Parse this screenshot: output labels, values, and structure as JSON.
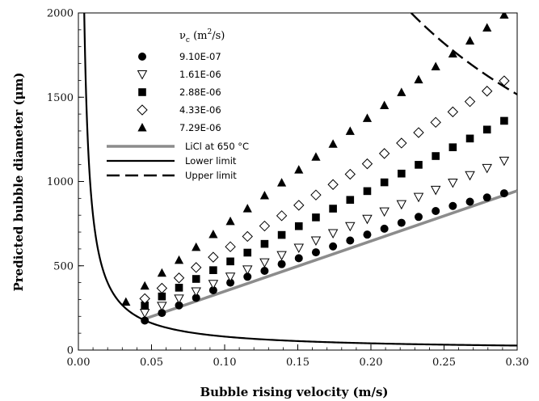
{
  "chart_data": {
    "type": "scatter",
    "xlabel": "Bubble rising velocity (m/s)",
    "ylabel": "Predicted bubble diameter (μm)",
    "xlim": [
      0.0,
      0.3
    ],
    "ylim": [
      0,
      2000
    ],
    "x_ticks": [
      "0.00",
      "0.05",
      "0.10",
      "0.15",
      "0.20",
      "0.25",
      "0.30"
    ],
    "y_ticks": [
      "0",
      "500",
      "1000",
      "1500",
      "2000"
    ],
    "grid": false,
    "legend_placement": "top-left",
    "legend_title_main": "ν",
    "legend_title_sub": "c",
    "legend_title_unit_open": " (m",
    "legend_title_unit_sup": "2",
    "legend_title_unit_close": "/s)",
    "x": [
      0.0454,
      0.0571,
      0.0688,
      0.0805,
      0.0922,
      0.1039,
      0.1156,
      0.1273,
      0.139,
      0.1507,
      0.1624,
      0.1741,
      0.1858,
      0.1975,
      0.2092,
      0.2209,
      0.2326,
      0.2443,
      0.256,
      0.2677,
      0.2794,
      0.2911
    ],
    "series": [
      {
        "name": "9.10E-07",
        "marker": "circle",
        "values": [
          175,
          220,
          265,
          310,
          355,
          400,
          435,
          470,
          510,
          545,
          580,
          615,
          650,
          685,
          720,
          755,
          790,
          825,
          855,
          880,
          905,
          930
        ]
      },
      {
        "name": "1.61E-06",
        "marker": "triangle-down-open",
        "values": [
          220,
          262,
          305,
          348,
          392,
          435,
          478,
          520,
          563,
          607,
          650,
          693,
          735,
          778,
          822,
          865,
          908,
          950,
          993,
          1037,
          1080,
          1123
        ]
      },
      {
        "name": "2.88E-06",
        "marker": "square",
        "values": [
          265,
          318,
          370,
          422,
          474,
          526,
          578,
          630,
          683,
          735,
          787,
          839,
          891,
          943,
          995,
          1047,
          1099,
          1151,
          1203,
          1255,
          1308,
          1360
        ]
      },
      {
        "name": "4.33E-06",
        "marker": "diamond-open",
        "values": [
          305,
          367,
          428,
          490,
          551,
          613,
          674,
          736,
          797,
          859,
          920,
          982,
          1043,
          1105,
          1166,
          1228,
          1290,
          1351,
          1413,
          1474,
          1536,
          1597
        ]
      },
      {
        "name": "7.29E-06",
        "marker": "triangle-up",
        "values": [
          380,
          457,
          533,
          610,
          686,
          763,
          839,
          916,
          992,
          1069,
          1145,
          1222,
          1298,
          1375,
          1451,
          1528,
          1604,
          1681,
          1757,
          1834,
          1911,
          1988
        ]
      }
    ],
    "lines": [
      {
        "name": "LiCl at 650 °C",
        "style": "solid-gray",
        "x": [
          0.047,
          0.3
        ],
        "values": [
          190,
          945
        ]
      },
      {
        "name": "Lower limit",
        "style": "solid-black",
        "formula": "y = 8.0 / x",
        "x_range": [
          0.004,
          0.3
        ]
      },
      {
        "name": "Upper limit",
        "style": "dashed-black",
        "formula": "y = 455 / x",
        "x_range": [
          0.2275,
          0.3
        ]
      }
    ],
    "extra_points": [
      {
        "marker": "triangle-up",
        "x": 0.0325,
        "y": 285
      }
    ],
    "colors": {
      "licl_line": "#8c8c8c",
      "curves": "#000000",
      "markers": "#000000"
    }
  }
}
